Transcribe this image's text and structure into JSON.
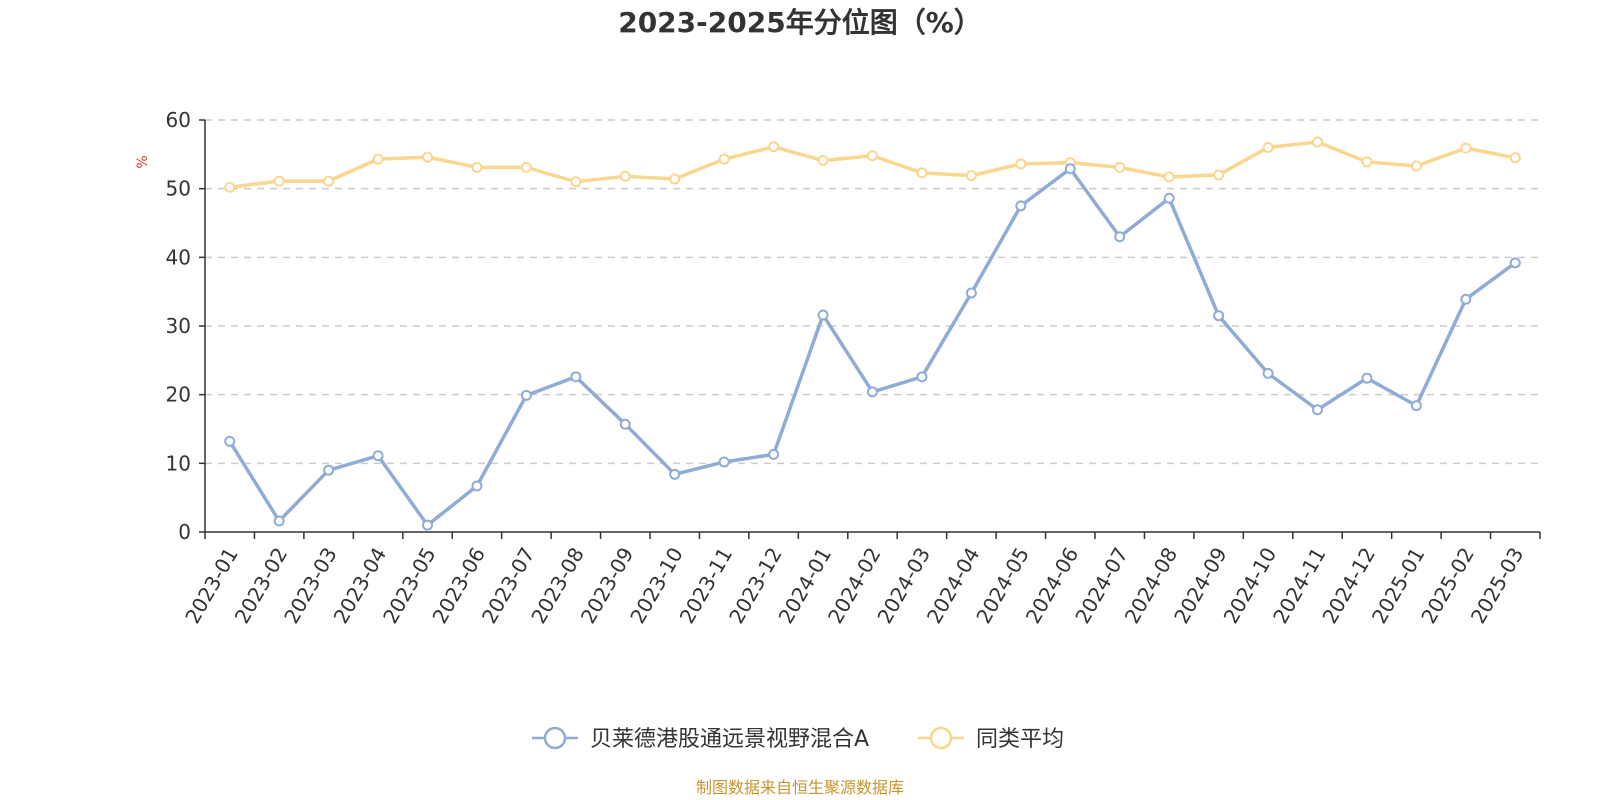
{
  "chart_data": {
    "type": "line",
    "title": "2023-2025年分位图（%）",
    "ylabel": "%",
    "ylim": [
      0,
      60
    ],
    "yticks": [
      0,
      10,
      20,
      30,
      40,
      50,
      60
    ],
    "grid": true,
    "legend_position": "bottom",
    "categories": [
      "2023-01",
      "2023-02",
      "2023-03",
      "2023-04",
      "2023-05",
      "2023-06",
      "2023-07",
      "2023-08",
      "2023-09",
      "2023-10",
      "2023-11",
      "2023-12",
      "2024-01",
      "2024-02",
      "2024-03",
      "2024-04",
      "2024-05",
      "2024-06",
      "2024-07",
      "2024-08",
      "2024-09",
      "2024-10",
      "2024-11",
      "2024-12",
      "2025-01",
      "2025-02",
      "2025-03"
    ],
    "series": [
      {
        "name": "贝莱德港股通远景视野混合A",
        "color": "#8eacd6",
        "values": [
          13.2,
          1.6,
          9.0,
          11.1,
          1.0,
          6.7,
          19.9,
          22.6,
          15.7,
          8.4,
          10.2,
          11.3,
          31.6,
          20.4,
          22.6,
          34.8,
          47.5,
          52.9,
          43.0,
          48.6,
          31.5,
          23.1,
          17.8,
          22.4,
          18.4,
          33.9,
          39.2
        ]
      },
      {
        "name": "同类平均",
        "color": "#fad68f",
        "values": [
          50.2,
          51.1,
          51.1,
          54.3,
          54.6,
          53.1,
          53.1,
          51.0,
          51.8,
          51.4,
          54.3,
          56.1,
          54.1,
          54.8,
          52.3,
          51.9,
          53.6,
          53.8,
          53.1,
          51.7,
          52.0,
          56.0,
          56.8,
          53.9,
          53.3,
          55.9,
          54.5
        ]
      }
    ]
  },
  "source_text": "制图数据来自恒生聚源数据库",
  "colors": {
    "title": "#333333",
    "axis": "#333333",
    "grid": "#cccccc",
    "unit": "#e83a3a",
    "source": "#c8952f"
  }
}
